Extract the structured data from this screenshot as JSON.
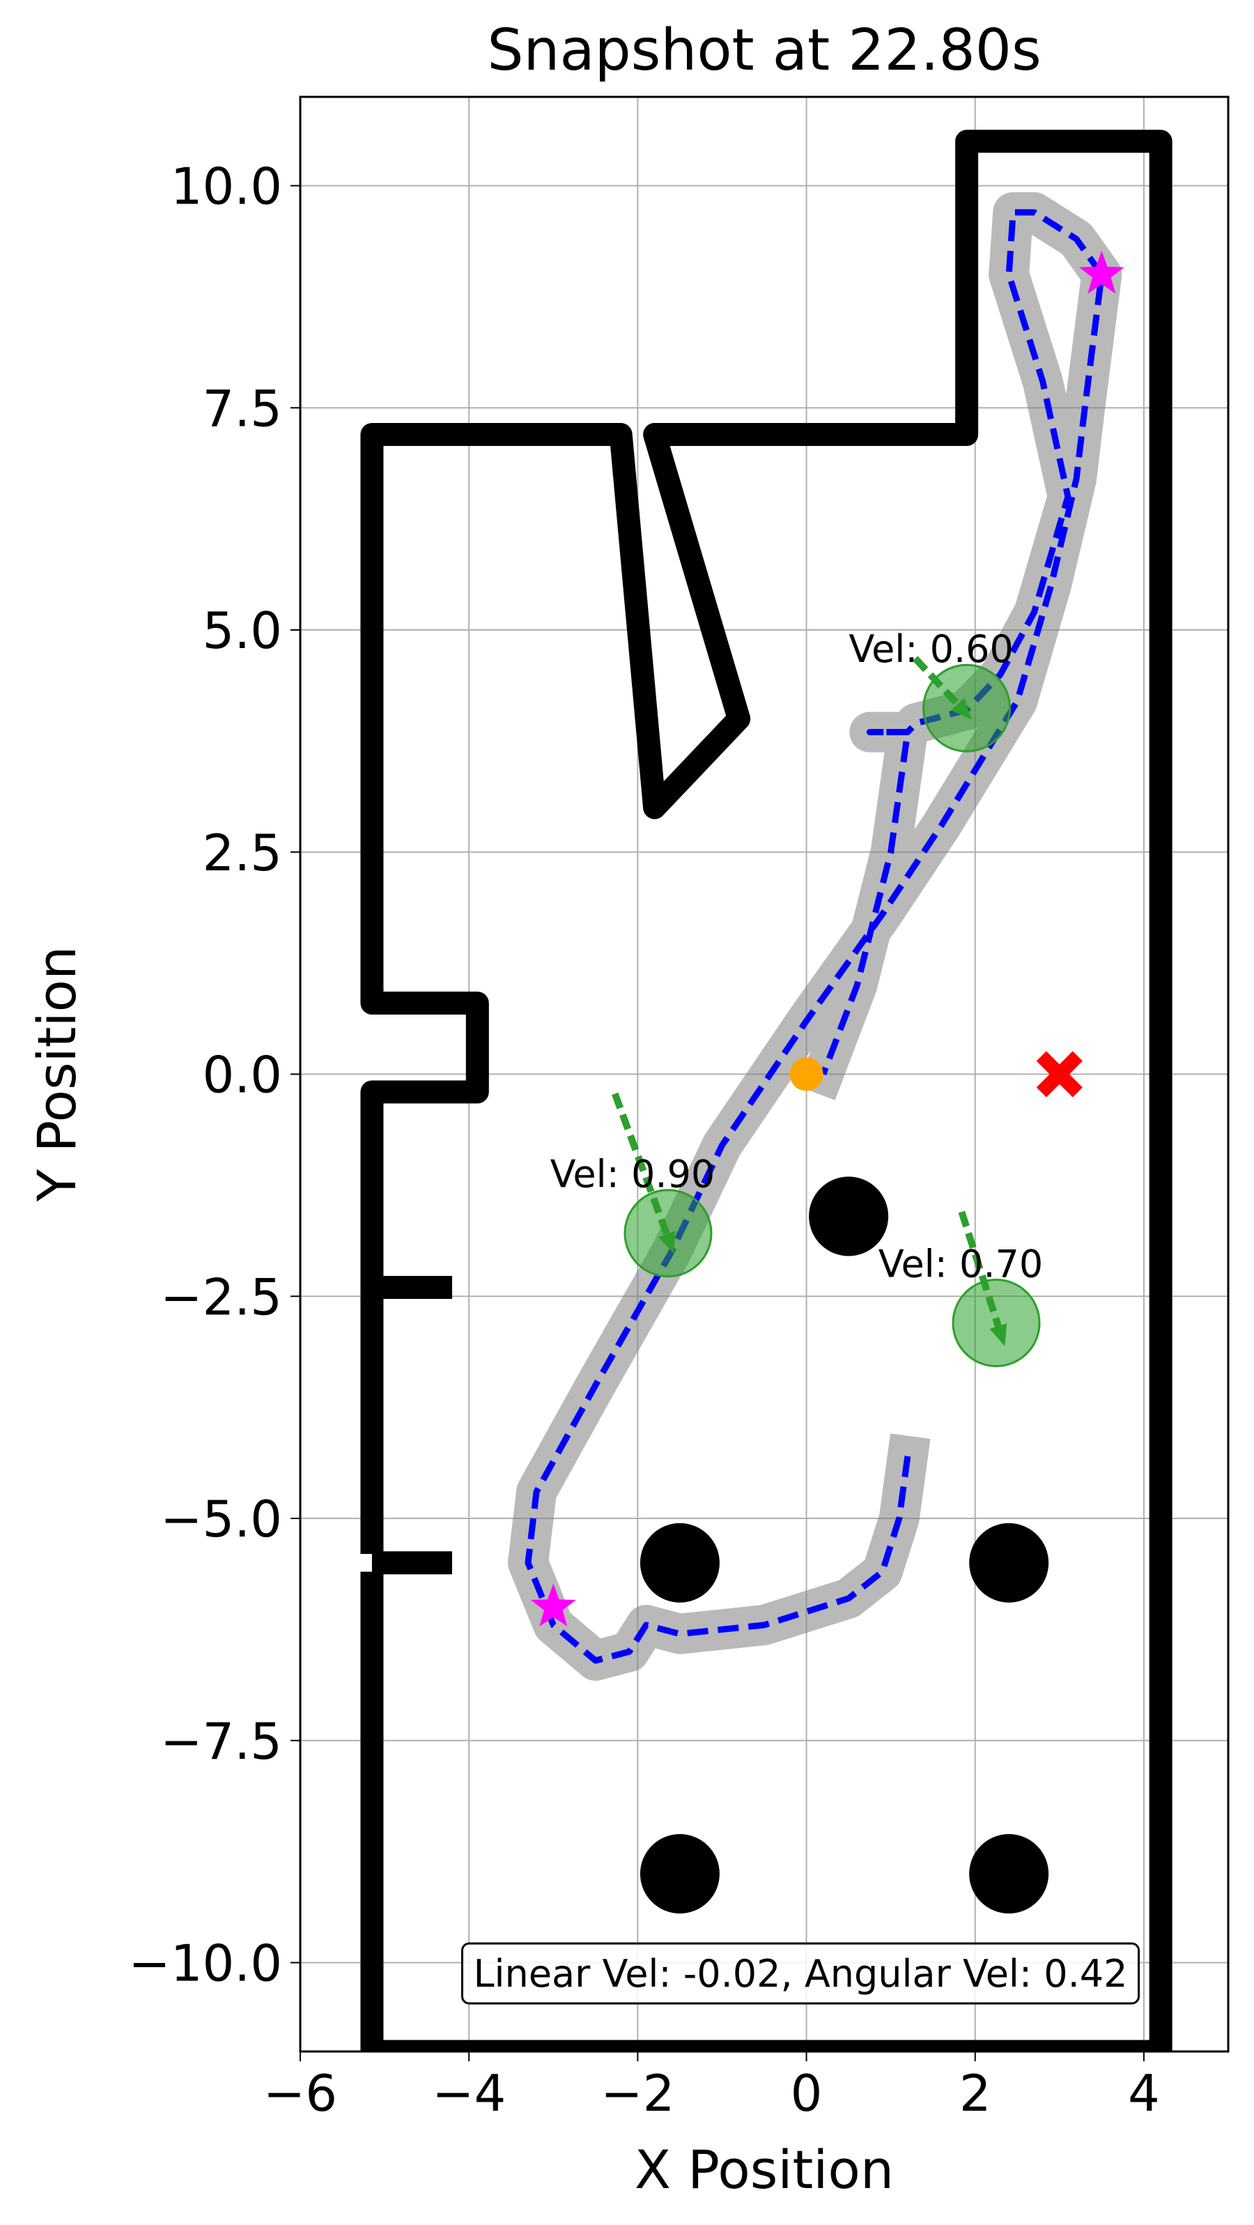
{
  "chart_data": {
    "type": "scatter",
    "title": "Snapshot at 22.80s",
    "x_label": "X Position",
    "y_label": "Y Position",
    "xlim": [
      -6,
      5
    ],
    "ylim": [
      -11,
      11
    ],
    "xticks": [
      {
        "value": -6,
        "label": "−6"
      },
      {
        "value": -4,
        "label": "−4"
      },
      {
        "value": -2,
        "label": "−2"
      },
      0,
      2,
      4
    ],
    "yticks": [
      {
        "value": -10,
        "label": "−10.0"
      },
      {
        "value": -7.5,
        "label": "−7.5"
      },
      {
        "value": -5,
        "label": "−5.0"
      },
      {
        "value": -2.5,
        "label": "−2.5"
      },
      {
        "value": 0,
        "label": "0.0"
      },
      2.5,
      {
        "value": 5,
        "label": "5.0"
      },
      7.5,
      {
        "value": 10,
        "label": "10.0"
      }
    ],
    "grid": true,
    "walls": {
      "color": "#000000",
      "lines": [
        {
          "x": [
            -5.15,
            -5.15,
            -3.9,
            -3.9,
            -5.15,
            -5.15,
            -2.2,
            -1.8,
            -0.8,
            -1.8,
            1.9,
            1.9,
            4.2,
            4.2,
            -5.15,
            -5.15
          ],
          "y": [
            -5.4,
            -0.2,
            -0.2,
            0.8,
            0.8,
            7.2,
            7.2,
            3.0,
            4.0,
            7.2,
            7.2,
            10.5,
            10.5,
            -11,
            -11,
            -5.6
          ]
        },
        {
          "x": [
            -5.15,
            -4.2
          ],
          "y": [
            -2.4,
            -2.4
          ]
        },
        {
          "x": [
            -5.15,
            -4.2
          ],
          "y": [
            -5.5,
            -5.5
          ]
        }
      ]
    },
    "obstacles": {
      "color": "#000000",
      "x": [
        0.5,
        -1.5,
        2.4,
        -1.5,
        2.4
      ],
      "y": [
        -1.6,
        -5.5,
        -5.5,
        -9,
        -9
      ]
    },
    "trajectory": {
      "color": "#0000ff",
      "trail_color": "#808080",
      "x": [
        1.2,
        1.1,
        0.9,
        0.5,
        -0.5,
        -1.5,
        -1.9,
        -2.1,
        -2.5,
        -3.0,
        -3.3,
        -3.2,
        -2.5,
        -1.6,
        -1.0,
        0.0,
        0.9,
        1.6,
        2.5,
        2.9,
        3.2,
        3.3,
        3.5,
        3.2,
        2.7,
        2.45,
        2.4,
        2.8,
        3.1,
        2.7,
        2.3,
        1.9,
        1.3,
        1.2,
        0.75,
        1.2,
        1.0,
        0.6,
        0.2
      ],
      "y": [
        -4.3,
        -5.0,
        -5.6,
        -5.9,
        -6.2,
        -6.3,
        -6.2,
        -6.5,
        -6.6,
        -6.2,
        -5.5,
        -4.7,
        -3.5,
        -2.0,
        -0.8,
        0.6,
        1.8,
        2.8,
        4.2,
        5.5,
        6.7,
        7.5,
        9.0,
        9.4,
        9.7,
        9.7,
        9.0,
        7.8,
        6.5,
        5.2,
        4.5,
        4.1,
        3.95,
        3.85,
        3.85,
        3.85,
        2.5,
        1.0,
        0.0
      ]
    },
    "agents": {
      "color": "#2ca02c",
      "items": [
        {
          "x": 1.9,
          "y": 4.12,
          "label": "Vel: 0.60",
          "arrow_x": [
            1.29,
            1.96
          ],
          "arrow_y": [
            4.68,
            3.99
          ]
        },
        {
          "x": -1.64,
          "y": -1.79,
          "label": "Vel: 0.90",
          "arrow_x": [
            -2.27,
            -1.57
          ],
          "arrow_y": [
            -0.22,
            -2.02
          ]
        },
        {
          "x": 2.25,
          "y": -2.8,
          "label": "Vel: 0.70",
          "arrow_x": [
            1.84,
            2.35
          ],
          "arrow_y": [
            -1.55,
            -3.06
          ]
        }
      ]
    },
    "robot": {
      "color": "#ffa500",
      "x": 0,
      "y": 0
    },
    "goal": {
      "color": "#ff0000",
      "x": 3,
      "y": 0
    },
    "waypoints": {
      "color": "#ff00ff",
      "x": [
        3.5,
        -3
      ],
      "y": [
        9,
        -6
      ]
    },
    "info": "Linear Vel: -0.02, Angular Vel: 0.42"
  }
}
